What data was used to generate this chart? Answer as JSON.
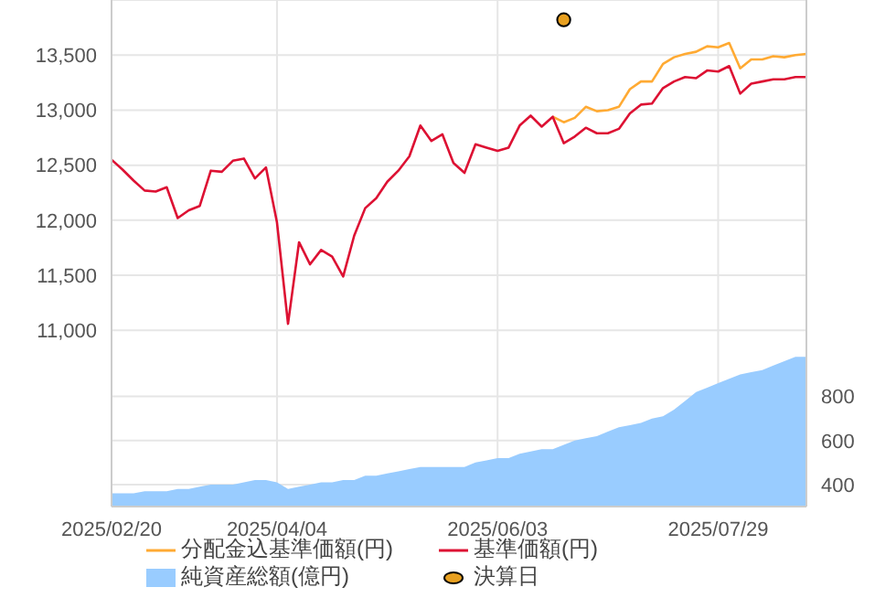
{
  "chart_data": {
    "type": "line",
    "categories": [
      "2025/02/20",
      null,
      null,
      null,
      null,
      null,
      null,
      null,
      null,
      null,
      null,
      null,
      null,
      null,
      null,
      "2025/04/04",
      null,
      null,
      null,
      null,
      null,
      null,
      null,
      null,
      null,
      null,
      null,
      null,
      null,
      null,
      null,
      null,
      null,
      null,
      null,
      "2025/06/03",
      null,
      null,
      null,
      null,
      null,
      null,
      null,
      null,
      null,
      null,
      null,
      null,
      null,
      null,
      null,
      null,
      null,
      null,
      null,
      "2025/07/29",
      null,
      null,
      null,
      null,
      null,
      null,
      null,
      null
    ],
    "series": [
      {
        "name": "分配金込基準価額(円)",
        "type": "line",
        "color": "#ffaa33",
        "values": [
          null,
          null,
          null,
          null,
          null,
          null,
          null,
          null,
          null,
          null,
          null,
          null,
          null,
          null,
          null,
          null,
          null,
          null,
          null,
          null,
          null,
          null,
          null,
          null,
          null,
          null,
          null,
          null,
          null,
          null,
          null,
          null,
          null,
          null,
          null,
          null,
          null,
          null,
          null,
          null,
          12940,
          12890,
          12930,
          13030,
          12990,
          13000,
          13030,
          13190,
          13260,
          13260,
          13420,
          13480,
          13510,
          13530,
          13580,
          13570,
          13610,
          13380,
          13460,
          13460,
          13490,
          13480,
          13500,
          13510
        ]
      },
      {
        "name": "基準価額(円)",
        "type": "line",
        "color": "#dd1133",
        "values": [
          12550,
          12460,
          12360,
          12270,
          12260,
          12300,
          12020,
          12090,
          12130,
          12450,
          12440,
          12540,
          12560,
          12380,
          12480,
          11980,
          11060,
          11800,
          11600,
          11730,
          11670,
          11490,
          11860,
          12110,
          12200,
          12350,
          12450,
          12580,
          12860,
          12720,
          12780,
          12520,
          12430,
          12690,
          12660,
          12630,
          12660,
          12860,
          12950,
          12850,
          12940,
          12700,
          12760,
          12840,
          12790,
          12790,
          12830,
          12970,
          13050,
          13060,
          13200,
          13260,
          13300,
          13290,
          13360,
          13350,
          13400,
          13150,
          13240,
          13260,
          13280,
          13280,
          13300,
          13300
        ]
      },
      {
        "name": "純資産総額(億円)",
        "type": "area",
        "axis": "y2",
        "color": "#99ccff",
        "values": [
          360,
          360,
          360,
          370,
          370,
          370,
          380,
          380,
          390,
          400,
          400,
          400,
          410,
          420,
          420,
          410,
          380,
          390,
          400,
          410,
          410,
          420,
          420,
          440,
          440,
          450,
          460,
          470,
          480,
          480,
          480,
          480,
          480,
          500,
          510,
          520,
          520,
          540,
          550,
          560,
          560,
          580,
          600,
          610,
          620,
          640,
          660,
          670,
          680,
          700,
          710,
          740,
          780,
          820,
          840,
          860,
          880,
          900,
          910,
          920,
          940,
          960,
          980,
          980
        ]
      },
      {
        "name": "決算日",
        "type": "scatter",
        "marker": "circle",
        "color": "#e8a020",
        "values": [
          null,
          null,
          null,
          null,
          null,
          null,
          null,
          null,
          null,
          null,
          null,
          null,
          null,
          null,
          null,
          null,
          null,
          null,
          null,
          null,
          null,
          null,
          null,
          null,
          null,
          null,
          null,
          null,
          null,
          null,
          null,
          null,
          null,
          null,
          null,
          null,
          null,
          null,
          null,
          null,
          null,
          13820,
          null,
          null,
          null,
          null,
          null,
          null,
          null,
          null,
          null,
          null,
          null,
          null,
          null,
          null,
          null,
          null,
          null,
          null,
          null,
          null,
          null,
          null
        ]
      }
    ],
    "ylim": [
      9400,
      14000
    ],
    "yticks": [
      {
        "value": 11000,
        "label": "11,000"
      },
      {
        "value": 11500,
        "label": "11,500"
      },
      {
        "value": 12000,
        "label": "12,000"
      },
      {
        "value": 12500,
        "label": "12,500"
      },
      {
        "value": 13000,
        "label": "13,000"
      },
      {
        "value": 13500,
        "label": "13,500"
      }
    ],
    "y2lim": [
      300,
      2600
    ],
    "y2ticks": [
      400,
      600,
      800
    ],
    "grid": true,
    "legend": "bottom"
  }
}
